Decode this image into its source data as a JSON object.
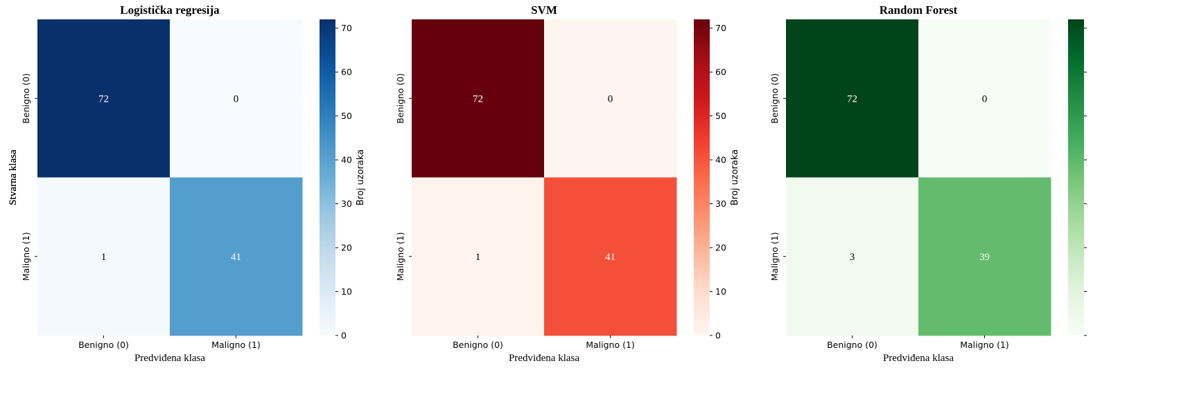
{
  "chart_data": [
    {
      "type": "heatmap",
      "title": "Logistička regresija",
      "xlabel": "Predviđena klasa",
      "ylabel": "Stvarna klasa",
      "x_categories": [
        "Benigno (0)",
        "Maligno (1)"
      ],
      "y_categories": [
        "Benigno (0)",
        "Maligno (1)"
      ],
      "values": [
        [
          72,
          0
        ],
        [
          1,
          41
        ]
      ],
      "colormap": "Blues",
      "colorbar": {
        "label": "Broj uzoraka",
        "min": 0,
        "max": 72,
        "ticks": [
          0,
          10,
          20,
          30,
          40,
          50,
          60,
          70
        ]
      },
      "colors": {
        "low": "#f7fbff",
        "high": "#08306b"
      }
    },
    {
      "type": "heatmap",
      "title": "SVM",
      "xlabel": "Predviđena klasa",
      "ylabel": "Stvarna klasa",
      "x_categories": [
        "Benigno (0)",
        "Maligno (1)"
      ],
      "y_categories": [
        "Benigno (0)",
        "Maligno (1)"
      ],
      "values": [
        [
          72,
          0
        ],
        [
          1,
          41
        ]
      ],
      "colormap": "Reds",
      "colorbar": {
        "label": "Broj uzoraka",
        "min": 0,
        "max": 72,
        "ticks": [
          0,
          10,
          20,
          30,
          40,
          50,
          60,
          70
        ]
      },
      "colors": {
        "low": "#fff5f0",
        "high": "#67000d"
      }
    },
    {
      "type": "heatmap",
      "title": "Random Forest",
      "xlabel": "Predviđena klasa",
      "ylabel": "Stvarna klasa",
      "x_categories": [
        "Benigno (0)",
        "Maligno (1)"
      ],
      "y_categories": [
        "Benigno (0)",
        "Maligno (1)"
      ],
      "values": [
        [
          72,
          0
        ],
        [
          3,
          39
        ]
      ],
      "colormap": "Greens",
      "colorbar": {
        "label": "",
        "min": 0,
        "max": 72,
        "ticks": [
          0,
          10,
          20,
          30,
          40,
          50,
          60,
          70
        ],
        "tick_labels_visible": false
      },
      "colors": {
        "low": "#f7fcf5",
        "high": "#00441b"
      }
    }
  ]
}
